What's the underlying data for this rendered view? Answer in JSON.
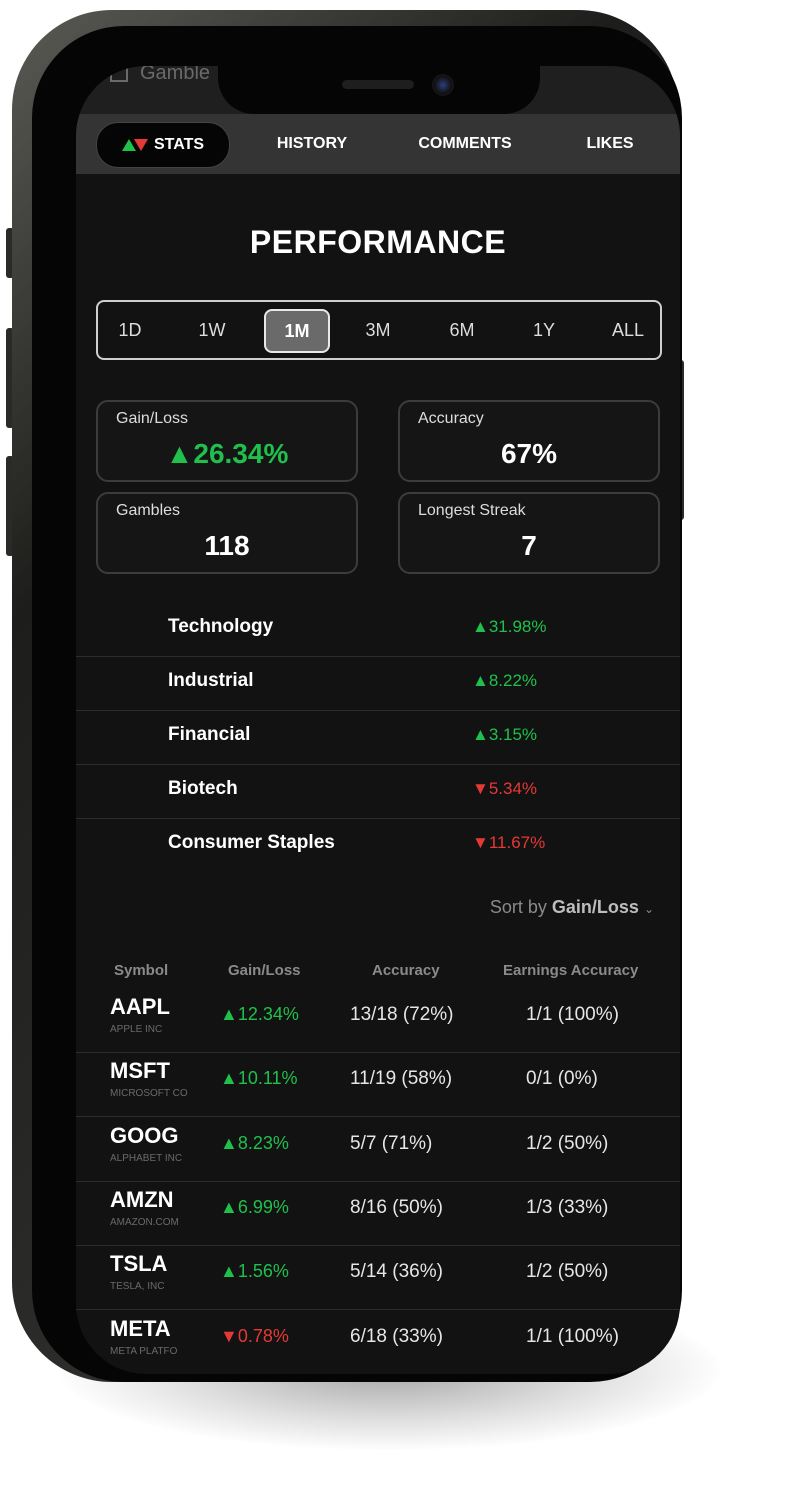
{
  "header": {
    "title_peek": "Gamble"
  },
  "tabs": [
    {
      "label": "STATS",
      "active": true
    },
    {
      "label": "HISTORY",
      "active": false
    },
    {
      "label": "COMMENTS",
      "active": false
    },
    {
      "label": "LIKES",
      "active": false
    }
  ],
  "performance": {
    "title": "PERFORMANCE",
    "ranges": [
      "1D",
      "1W",
      "1M",
      "3M",
      "6M",
      "1Y",
      "ALL"
    ],
    "selected_range": "1M"
  },
  "stats": {
    "gain_loss": {
      "label": "Gain/Loss",
      "value": "▲26.34%"
    },
    "accuracy": {
      "label": "Accuracy",
      "value": "67%"
    },
    "gambles": {
      "label": "Gambles",
      "value": "118"
    },
    "longest_streak": {
      "label": "Longest Streak",
      "value": "7"
    }
  },
  "sectors": [
    {
      "name": "Technology",
      "change": "▲31.98%",
      "direction": "up"
    },
    {
      "name": "Industrial",
      "change": "▲8.22%",
      "direction": "up"
    },
    {
      "name": "Financial",
      "change": "▲3.15%",
      "direction": "up"
    },
    {
      "name": "Biotech",
      "change": "▼5.34%",
      "direction": "down"
    },
    {
      "name": "Consumer Staples",
      "change": "▼11.67%",
      "direction": "down"
    }
  ],
  "sort": {
    "prefix": "Sort by",
    "field": "Gain/Loss"
  },
  "table": {
    "columns": [
      "Symbol",
      "Gain/Loss",
      "Accuracy",
      "Earnings Accuracy"
    ],
    "rows": [
      {
        "symbol": "AAPL",
        "name": "APPLE INC",
        "gain_loss": "▲12.34%",
        "direction": "up",
        "accuracy": "13/18 (72%)",
        "earnings_accuracy": "1/1 (100%)"
      },
      {
        "symbol": "MSFT",
        "name": "MICROSOFT CO",
        "gain_loss": "▲10.11%",
        "direction": "up",
        "accuracy": "11/19 (58%)",
        "earnings_accuracy": "0/1 (0%)"
      },
      {
        "symbol": "GOOG",
        "name": "ALPHABET INC",
        "gain_loss": "▲8.23%",
        "direction": "up",
        "accuracy": "5/7 (71%)",
        "earnings_accuracy": "1/2 (50%)"
      },
      {
        "symbol": "AMZN",
        "name": "AMAZON.COM",
        "gain_loss": "▲6.99%",
        "direction": "up",
        "accuracy": "8/16 (50%)",
        "earnings_accuracy": "1/3 (33%)"
      },
      {
        "symbol": "TSLA",
        "name": "TESLA, INC",
        "gain_loss": "▲1.56%",
        "direction": "up",
        "accuracy": "5/14 (36%)",
        "earnings_accuracy": "1/2 (50%)"
      },
      {
        "symbol": "META",
        "name": "META PLATFO",
        "gain_loss": "▼0.78%",
        "direction": "down",
        "accuracy": "6/18 (33%)",
        "earnings_accuracy": "1/1 (100%)"
      }
    ]
  },
  "colors": {
    "up": "#1fc04c",
    "down": "#e53935",
    "background": "#121212"
  }
}
